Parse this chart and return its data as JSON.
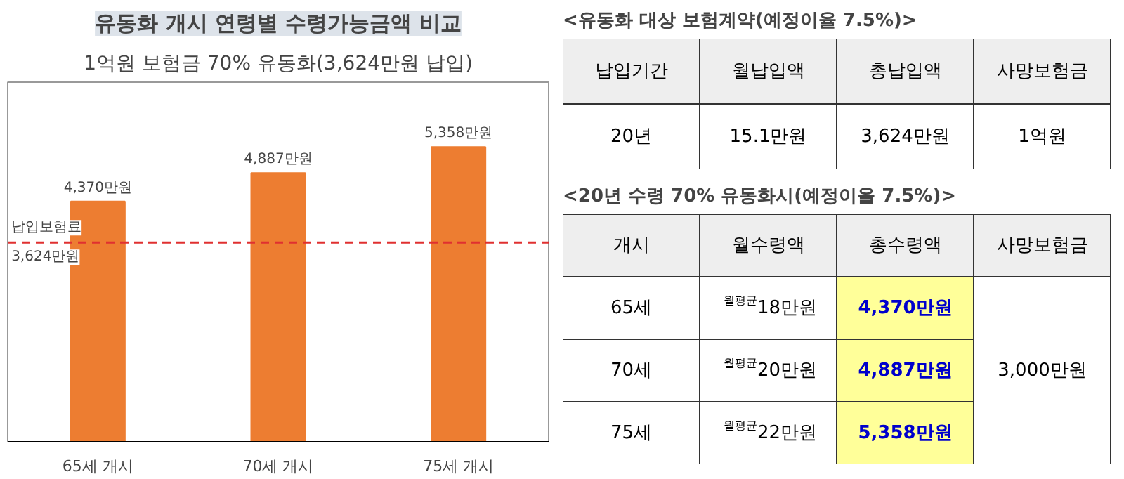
{
  "chart_data": [
    {
      "type": "bar",
      "title": "유동화 개시 연령별 수령가능금액 비교",
      "subtitle": "1억원 보험금 70% 유동화(3,624만원 납입)",
      "categories": [
        "65세 개시",
        "70세 개시",
        "75세 개시"
      ],
      "values": [
        4370,
        4887,
        5358
      ],
      "value_labels": [
        "4,370만원",
        "4,887만원",
        "5,358만원"
      ],
      "color": "#ed7d31",
      "ref_lines": [
        {
          "axis": "y",
          "value": 3624,
          "label": "납입보험료\n3,624만원",
          "color": "#e03030",
          "line_style": "dashed"
        }
      ]
    },
    {
      "type": "other",
      "title": "<유동화 대상 보험계약(예정이율 7.5%)>",
      "cell_labels": [
        [
          "납입기간",
          "월납입액",
          "총납입액",
          "사망보험금"
        ],
        [
          "20년",
          "15.1만원",
          "3,624만원",
          "1억원"
        ]
      ],
      "colors": [
        [
          "#eeeeee",
          "#eeeeee",
          "#eeeeee",
          "#eeeeee"
        ],
        [
          null,
          null,
          null,
          null
        ]
      ]
    },
    {
      "type": "other",
      "title": "<20년 수령 70% 유동화시(예정이율 7.5%)>",
      "cell_labels": [
        [
          "개시",
          "월수령액",
          "총수령액",
          "사망보험금"
        ],
        [
          "65세",
          "$^{월평균}$18만원",
          "4,370만원",
          "3,000만원"
        ],
        [
          "70세",
          "$^{월평균}$20만원",
          "4,887만원",
          null
        ],
        [
          "75세",
          "$^{월평균}$22만원",
          "5,358만원",
          null
        ]
      ],
      "colors": [
        [
          "#eeeeee",
          "#eeeeee",
          "#eeeeee",
          "#eeeeee"
        ],
        [
          null,
          null,
          "#ffff99",
          null
        ],
        [
          null,
          null,
          "#ffff99",
          null
        ],
        [
          null,
          null,
          "#ffff99",
          null
        ]
      ]
    }
  ]
}
